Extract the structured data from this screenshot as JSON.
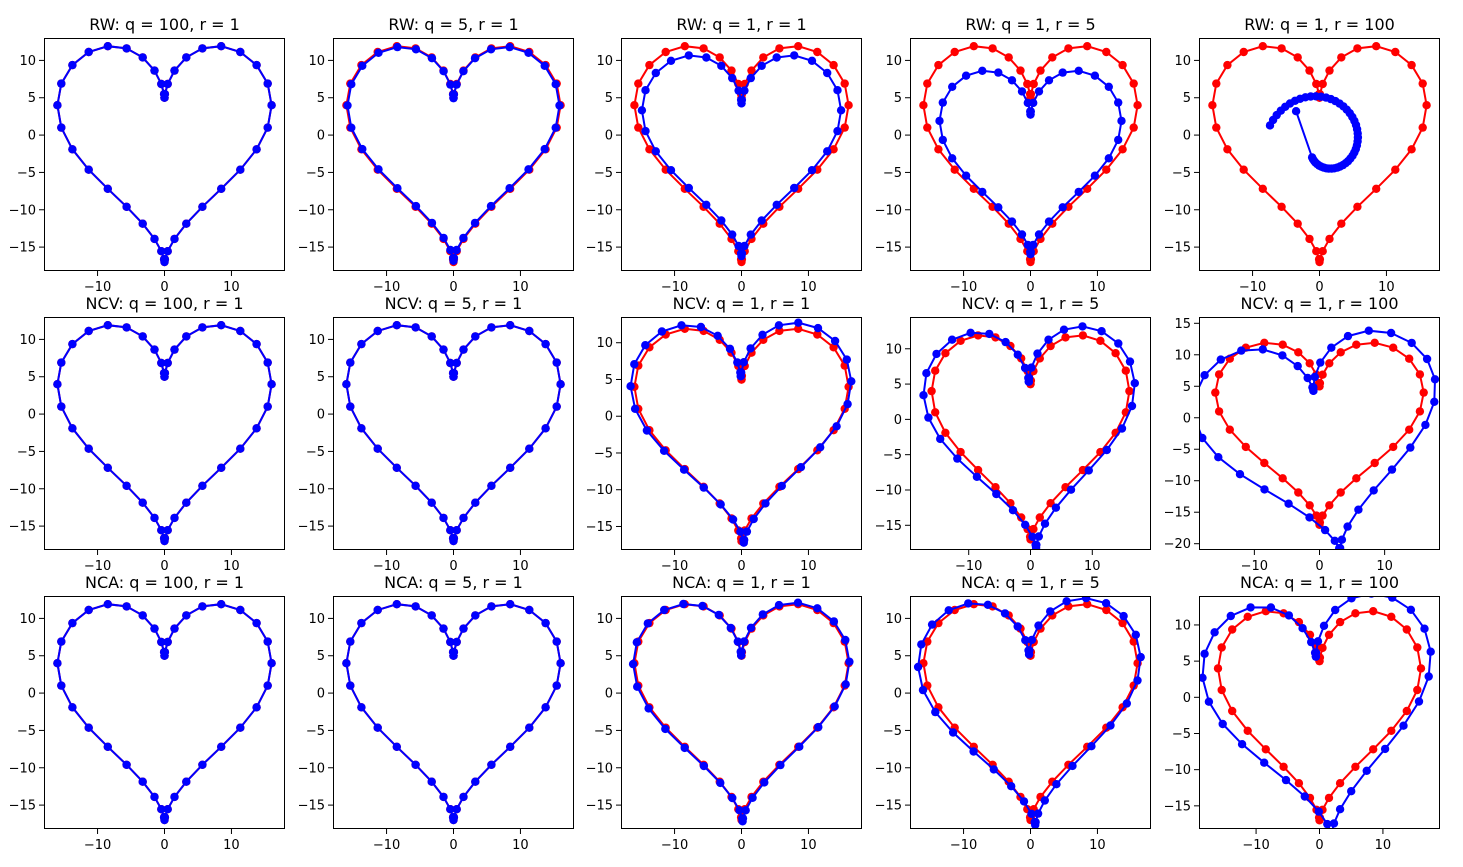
{
  "figure": {
    "colors": {
      "reference": "#ff0000",
      "estimate": "#0000ff"
    }
  },
  "chart_data": [
    {
      "title": "RW: q = 100, r = 1",
      "type": "line",
      "xlim": [
        -18,
        18
      ],
      "ylim": [
        -18.2,
        13
      ],
      "xticks": [
        -10,
        0,
        10
      ],
      "yticks": [
        10,
        5,
        0,
        -5,
        -10,
        -15
      ],
      "red": {
        "rot": 0,
        "scale": 1,
        "dx": 0,
        "dy": 0
      },
      "blue": {
        "rot": 0,
        "scale": 1,
        "dx": 0,
        "dy": 0
      }
    },
    {
      "title": "RW: q = 5, r = 1",
      "type": "line",
      "xlim": [
        -18,
        18
      ],
      "ylim": [
        -18.2,
        13
      ],
      "xticks": [
        -10,
        0,
        10
      ],
      "yticks": [
        10,
        5,
        0,
        -5,
        -10,
        -15
      ],
      "red": {
        "rot": 0,
        "scale": 1,
        "dx": 0,
        "dy": 0
      },
      "blue": {
        "rot": 0,
        "scale": 0.99,
        "dx": 0,
        "dy": 0
      }
    },
    {
      "title": "RW: q = 1, r = 1",
      "type": "line",
      "xlim": [
        -18,
        18
      ],
      "ylim": [
        -18.2,
        13
      ],
      "xticks": [
        -10,
        0,
        10
      ],
      "yticks": [
        10,
        5,
        0,
        -5,
        -10,
        -15
      ],
      "red": {
        "rot": 0,
        "scale": 1,
        "dx": 0,
        "dy": 0
      },
      "blue": {
        "rot": 0,
        "scale": 0.93,
        "dx": 0,
        "dy": -0.4
      }
    },
    {
      "title": "RW: q = 1, r = 5",
      "type": "line",
      "xlim": [
        -18,
        18
      ],
      "ylim": [
        -18.2,
        13
      ],
      "xticks": [
        -10,
        0,
        10
      ],
      "yticks": [
        10,
        5,
        0,
        -5,
        -10,
        -15
      ],
      "red": {
        "rot": 0,
        "scale": 1,
        "dx": 0,
        "dy": 0
      },
      "blue": {
        "rot": 0,
        "scale": 0.85,
        "dx": 0,
        "dy": -1.5
      }
    },
    {
      "title": "RW: q = 1, r = 100",
      "type": "spiral",
      "xlim": [
        -18,
        18
      ],
      "ylim": [
        -18.2,
        13
      ],
      "xticks": [
        -10,
        0,
        10
      ],
      "yticks": [
        10,
        5,
        0,
        -5,
        -10,
        -15
      ],
      "red": {
        "rot": 0,
        "scale": 1,
        "dx": 0,
        "dy": 0
      },
      "blue": {
        "spiral_start": [
          -3.5,
          3.2
        ],
        "spiral_end": [
          0.2,
          5.5
        ]
      }
    },
    {
      "title": "NCV: q = 100, r = 1",
      "type": "line",
      "xlim": [
        -18,
        18
      ],
      "ylim": [
        -18.2,
        13
      ],
      "xticks": [
        -10,
        0,
        10
      ],
      "yticks": [
        10,
        5,
        0,
        -5,
        -10,
        -15
      ],
      "red": {
        "rot": 0,
        "scale": 1,
        "dx": 0,
        "dy": 0
      },
      "blue": {
        "rot": 0,
        "scale": 1,
        "dx": 0,
        "dy": 0
      }
    },
    {
      "title": "NCV: q = 5, r = 1",
      "type": "line",
      "xlim": [
        -18,
        18
      ],
      "ylim": [
        -18.2,
        13
      ],
      "xticks": [
        -10,
        0,
        10
      ],
      "yticks": [
        10,
        5,
        0,
        -5,
        -10,
        -15
      ],
      "red": {
        "rot": 0,
        "scale": 1,
        "dx": 0,
        "dy": 0
      },
      "blue": {
        "rot": 0,
        "scale": 1,
        "dx": 0,
        "dy": 0
      }
    },
    {
      "title": "NCV: q = 1, r = 1",
      "type": "line",
      "xlim": [
        -18,
        18
      ],
      "ylim": [
        -18.2,
        13.5
      ],
      "xticks": [
        -10,
        0,
        10
      ],
      "yticks": [
        10,
        5,
        0,
        -5,
        -10,
        -15
      ],
      "red": {
        "rot": 0,
        "scale": 1,
        "dx": 0,
        "dy": 0
      },
      "blue": {
        "rot": 0.02,
        "scale": 1.03,
        "dx": 0,
        "dy": 0.3
      }
    },
    {
      "title": "NCV: q = 1, r = 5",
      "type": "line",
      "xlim": [
        -19.5,
        19.5
      ],
      "ylim": [
        -18.5,
        14.5
      ],
      "xticks": [
        -10,
        0,
        10
      ],
      "yticks": [
        10,
        5,
        0,
        -5,
        -10,
        -15
      ],
      "red": {
        "rot": 0,
        "scale": 1,
        "dx": 0,
        "dy": 0
      },
      "blue": {
        "rot": 0.05,
        "scale": 1.07,
        "dx": 0,
        "dy": 0
      }
    },
    {
      "title": "NCV: q = 1, r = 100",
      "type": "line",
      "xlim": [
        -18.5,
        18.5
      ],
      "ylim": [
        -21,
        16
      ],
      "xticks": [
        -10,
        0,
        10
      ],
      "yticks": [
        15,
        10,
        5,
        0,
        -5,
        -10,
        -15,
        -20
      ],
      "red": {
        "rot": 0,
        "scale": 1,
        "dx": 0,
        "dy": 0
      },
      "blue": {
        "rot": 0.16,
        "scale": 1.17,
        "dx": 0,
        "dy": -1.5
      }
    },
    {
      "title": "NCA: q = 100, r = 1",
      "type": "line",
      "xlim": [
        -18,
        18
      ],
      "ylim": [
        -18.2,
        13
      ],
      "xticks": [
        -10,
        0,
        10
      ],
      "yticks": [
        10,
        5,
        0,
        -5,
        -10,
        -15
      ],
      "red": {
        "rot": 0,
        "scale": 1,
        "dx": 0,
        "dy": 0
      },
      "blue": {
        "rot": 0,
        "scale": 1,
        "dx": 0,
        "dy": 0
      }
    },
    {
      "title": "NCA: q = 5, r = 1",
      "type": "line",
      "xlim": [
        -18,
        18
      ],
      "ylim": [
        -18.2,
        13
      ],
      "xticks": [
        -10,
        0,
        10
      ],
      "yticks": [
        10,
        5,
        0,
        -5,
        -10,
        -15
      ],
      "red": {
        "rot": 0,
        "scale": 1,
        "dx": 0,
        "dy": 0
      },
      "blue": {
        "rot": 0,
        "scale": 1,
        "dx": 0,
        "dy": 0
      }
    },
    {
      "title": "NCA: q = 1, r = 1",
      "type": "line",
      "xlim": [
        -18,
        18
      ],
      "ylim": [
        -18.2,
        13
      ],
      "xticks": [
        -10,
        0,
        10
      ],
      "yticks": [
        10,
        5,
        0,
        -5,
        -10,
        -15
      ],
      "red": {
        "rot": 0,
        "scale": 1,
        "dx": 0,
        "dy": 0
      },
      "blue": {
        "rot": 0.01,
        "scale": 1.01,
        "dx": 0,
        "dy": 0
      }
    },
    {
      "title": "NCA: q = 1, r = 5",
      "type": "line",
      "xlim": [
        -18,
        18
      ],
      "ylim": [
        -18.2,
        13
      ],
      "xticks": [
        -10,
        0,
        10
      ],
      "yticks": [
        10,
        5,
        0,
        -5,
        -10,
        -15
      ],
      "red": {
        "rot": 0,
        "scale": 1,
        "dx": 0,
        "dy": 0
      },
      "blue": {
        "rot": 0.04,
        "scale": 1.04,
        "dx": 0,
        "dy": 0
      }
    },
    {
      "title": "NCA: q = 1, r = 100",
      "type": "line",
      "xlim": [
        -19,
        19
      ],
      "ylim": [
        -18.2,
        14
      ],
      "xticks": [
        -10,
        0,
        10
      ],
      "yticks": [
        10,
        5,
        0,
        -5,
        -10,
        -15
      ],
      "red": {
        "rot": 0,
        "scale": 1,
        "dx": 0,
        "dy": 0
      },
      "blue": {
        "rot": 0.1,
        "scale": 1.13,
        "dx": 0,
        "dy": 0
      }
    }
  ]
}
